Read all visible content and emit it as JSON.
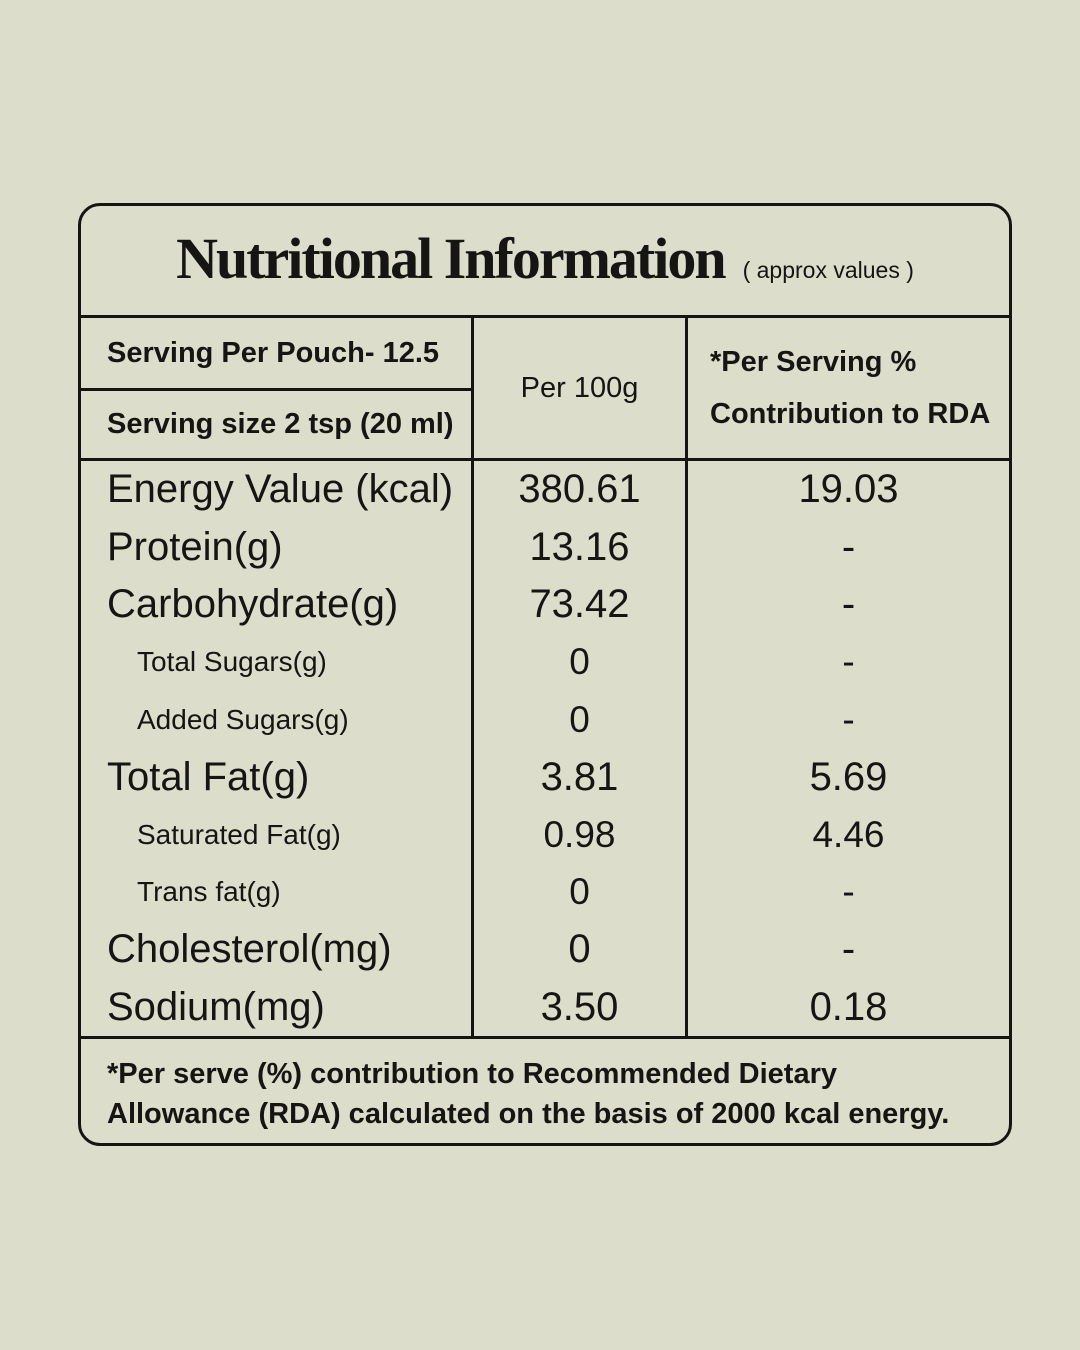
{
  "page": {
    "background_color": "#dcddca",
    "line_color": "#151513",
    "text_color": "#151513"
  },
  "title": {
    "text": "Nutritional Information",
    "note": "( approx values )"
  },
  "header": {
    "serving_per_pouch": "Serving Per Pouch- 12.5",
    "serving_size": "Serving size 2 tsp (20 ml)",
    "per_100g": "Per 100g",
    "rda_line1": "*Per Serving %",
    "rda_line2": "Contribution to RDA"
  },
  "rows": [
    {
      "label": "Energy Value (kcal)",
      "per_100g": "380.61",
      "rda": "19.03"
    },
    {
      "label": "Protein(g)",
      "per_100g": "13.16",
      "rda": "-"
    },
    {
      "label": "Carbohydrate(g)",
      "per_100g": "73.42",
      "rda": "-"
    },
    {
      "label": "Total Sugars(g)",
      "per_100g": "0",
      "rda": "-"
    },
    {
      "label": "Added Sugars(g)",
      "per_100g": "0",
      "rda": "-"
    },
    {
      "label": "Total Fat(g)",
      "per_100g": "3.81",
      "rda": "5.69"
    },
    {
      "label": "Saturated Fat(g)",
      "per_100g": "0.98",
      "rda": "4.46"
    },
    {
      "label": "Trans fat(g)",
      "per_100g": "0",
      "rda": "-"
    },
    {
      "label": "Cholesterol(mg)",
      "per_100g": "0",
      "rda": "-"
    },
    {
      "label": "Sodium(mg)",
      "per_100g": "3.50",
      "rda": "0.18"
    }
  ],
  "footer": {
    "text": "*Per serve (%) contribution to Recommended Dietary Allowance (RDA) calculated on the basis of 2000 kcal energy."
  }
}
